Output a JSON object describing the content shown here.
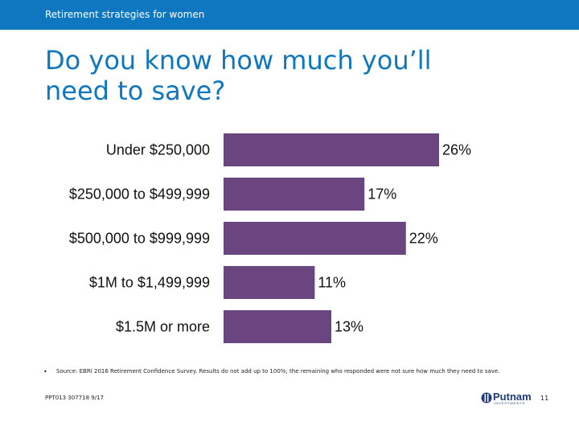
{
  "header": {
    "text": "Retirement strategies for women"
  },
  "title": {
    "line1": "Do you know how much you’ll",
    "line2": "need to save?"
  },
  "chart_data": {
    "type": "bar",
    "orientation": "horizontal",
    "categories": [
      "Under $250,000",
      "$250,000 to $499,999",
      "$500,000 to $999,999",
      "$1M to $1,499,999",
      "$1.5M or more"
    ],
    "values": [
      26,
      17,
      22,
      11,
      13
    ],
    "value_labels": [
      "26%",
      "17%",
      "22%",
      "11%",
      "13%"
    ],
    "unit": "%",
    "bar_color": "#6b4580",
    "xlim": [
      0,
      26
    ]
  },
  "footnote": {
    "bullet": "•",
    "text": "Source: EBRI 2016 Retirement Confidence Survey. Results do not add up to 100%; the remaining who responded were not sure how much they need to save."
  },
  "code": "PPT013 307718 9/17",
  "logo": {
    "name": "Putnam",
    "subtitle": "INVESTMENTS"
  },
  "page_number": "11"
}
